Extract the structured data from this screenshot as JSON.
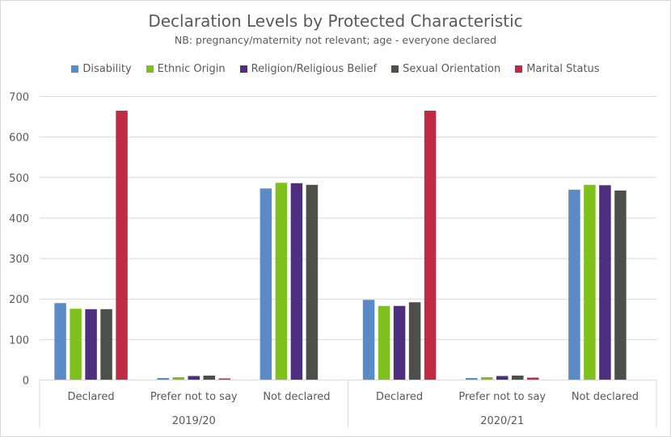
{
  "chart_data": {
    "type": "bar",
    "title": "Declaration Levels by Protected Characteristic",
    "subtitle": "NB: pregnancy/maternity not relevant; age - everyone declared",
    "xlabel": "",
    "ylabel": "",
    "ylim": [
      0,
      700
    ],
    "yticks": [
      0,
      100,
      200,
      300,
      400,
      500,
      600,
      700
    ],
    "grid": true,
    "legend_position": "top",
    "groups": [
      {
        "label": "2019/20",
        "categories": [
          "Declared",
          "Prefer not to say",
          "Not declared"
        ]
      },
      {
        "label": "2020/21",
        "categories": [
          "Declared",
          "Prefer not to say",
          "Not declared"
        ]
      }
    ],
    "series": [
      {
        "name": "Disability",
        "color": "#5b8bc6",
        "values": [
          190,
          5,
          473,
          198,
          5,
          470
        ]
      },
      {
        "name": "Ethnic Origin",
        "color": "#7ec11c",
        "values": [
          176,
          7,
          487,
          183,
          7,
          482
        ]
      },
      {
        "name": "Religion/Religious Belief",
        "color": "#4e2e7e",
        "values": [
          175,
          10,
          486,
          183,
          10,
          481
        ]
      },
      {
        "name": "Sexual Orientation",
        "color": "#4d4f4b",
        "values": [
          175,
          11,
          482,
          192,
          11,
          468
        ]
      },
      {
        "name": "Marital Status",
        "color": "#bf2b45",
        "values": [
          665,
          4,
          null,
          665,
          6,
          null
        ]
      }
    ]
  }
}
